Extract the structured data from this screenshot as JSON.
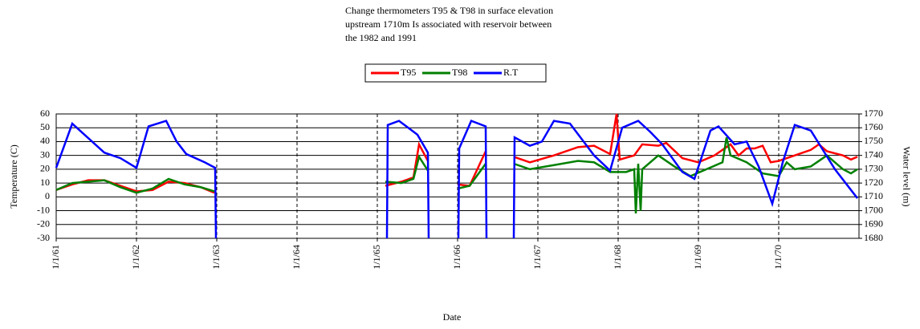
{
  "chart_data": {
    "type": "line",
    "title": [
      "Change thermometers T95 & T98 in surface elevation",
      "upstream 1710m Is associated with reservoir between",
      "the 1982 and 1991"
    ],
    "x_label": "Date",
    "y_label": "Temperature (C)",
    "y2_label": "Water level (m)",
    "xlim": [
      61,
      71
    ],
    "xticks": [
      {
        "value": 61,
        "label": "1/1/61"
      },
      {
        "value": 62,
        "label": "1/1/62"
      },
      {
        "value": 63,
        "label": "1/1/63"
      },
      {
        "value": 64,
        "label": "1/1/64"
      },
      {
        "value": 65,
        "label": "1/1/65"
      },
      {
        "value": 66,
        "label": "1/1/66"
      },
      {
        "value": 67,
        "label": "1/1/67"
      },
      {
        "value": 68,
        "label": "1/1/68"
      },
      {
        "value": 69,
        "label": "1/1/69"
      },
      {
        "value": 70,
        "label": "1/1/70"
      }
    ],
    "ylim": [
      -30,
      60
    ],
    "yticks": [
      -30,
      -20,
      -10,
      0,
      10,
      20,
      30,
      40,
      50,
      60
    ],
    "y2lim": [
      1680,
      1770
    ],
    "y2ticks": [
      1680,
      1690,
      1700,
      1710,
      1720,
      1730,
      1740,
      1750,
      1760,
      1770
    ],
    "grid": true,
    "legend": "top",
    "series": [
      {
        "name": "T95",
        "color": "#ff0000",
        "x": [
          61.0,
          61.2,
          61.4,
          61.6,
          61.8,
          62.0,
          62.2,
          62.4,
          62.6,
          62.8,
          62.97,
          64.0,
          65.1,
          65.3,
          65.45,
          65.52,
          65.63,
          65.8,
          66.0,
          66.15,
          66.35,
          66.5,
          66.7,
          66.9,
          67.2,
          67.5,
          67.7,
          67.9,
          67.98,
          68.02,
          68.2,
          68.3,
          68.5,
          68.6,
          68.8,
          69.0,
          69.2,
          69.35,
          69.4,
          69.5,
          69.6,
          69.7,
          69.8,
          69.9,
          70.0,
          70.2,
          70.4,
          70.5,
          70.6,
          70.8,
          70.9,
          70.98
        ],
        "values": [
          5,
          9,
          12,
          12,
          8,
          4,
          5,
          11,
          10,
          7,
          3,
          null,
          8,
          11,
          14,
          38,
          26,
          null,
          9,
          8,
          33,
          null,
          29,
          25,
          30,
          36,
          37,
          31,
          60,
          27,
          30,
          38,
          37,
          39,
          28,
          25,
          30,
          36,
          38,
          30,
          35,
          35,
          37,
          25,
          26,
          30,
          34,
          38,
          33,
          30,
          27,
          29
        ]
      },
      {
        "name": "T98",
        "color": "#008000",
        "x": [
          61.0,
          61.2,
          61.4,
          61.6,
          61.8,
          62.0,
          62.2,
          62.4,
          62.6,
          62.8,
          62.97,
          64.0,
          65.1,
          65.3,
          65.45,
          65.52,
          65.63,
          65.8,
          66.0,
          66.15,
          66.35,
          66.5,
          66.7,
          66.9,
          67.2,
          67.5,
          67.7,
          67.9,
          68.1,
          68.2,
          68.22,
          68.25,
          68.28,
          68.3,
          68.5,
          68.7,
          68.9,
          69.1,
          69.3,
          69.35,
          69.4,
          69.6,
          69.8,
          70.0,
          70.1,
          70.2,
          70.4,
          70.6,
          70.8,
          70.9,
          70.98
        ],
        "values": [
          5,
          10,
          11,
          12,
          7,
          3,
          6,
          13,
          9,
          7,
          4,
          null,
          11,
          10,
          13,
          29,
          19,
          null,
          6,
          8,
          24,
          null,
          24,
          20,
          23,
          26,
          25,
          18,
          18,
          20,
          -12,
          24,
          -10,
          20,
          30,
          22,
          15,
          20,
          25,
          43,
          30,
          25,
          17,
          15,
          25,
          20,
          22,
          30,
          20,
          17,
          20
        ]
      },
      {
        "name": "R.T",
        "color": "#0000ff",
        "axis": "y2",
        "x": [
          61.0,
          61.2,
          61.6,
          61.8,
          62.0,
          62.15,
          62.37,
          62.5,
          62.62,
          62.85,
          62.98,
          62.99,
          64.0,
          65.12,
          65.13,
          65.27,
          65.5,
          65.63,
          65.64,
          65.8,
          66.01,
          66.02,
          66.17,
          66.35,
          66.36,
          66.5,
          66.7,
          66.71,
          66.9,
          67.05,
          67.2,
          67.4,
          67.7,
          67.9,
          68.05,
          68.25,
          68.4,
          68.55,
          68.8,
          68.95,
          69.15,
          69.25,
          69.45,
          69.6,
          69.75,
          69.92,
          70.05,
          70.2,
          70.4,
          70.7,
          70.98
        ],
        "values": [
          1731,
          1763,
          1742,
          1738,
          1731,
          1761,
          1765,
          1750,
          1741,
          1735,
          1731,
          1680,
          null,
          1680,
          1762,
          1765,
          1755,
          1742,
          1680,
          null,
          1680,
          1745,
          1765,
          1761,
          1680,
          null,
          1680,
          1753,
          1747,
          1750,
          1765,
          1763,
          1740,
          1729,
          1760,
          1765,
          1757,
          1748,
          1728,
          1723,
          1758,
          1761,
          1748,
          1750,
          1732,
          1705,
          1735,
          1762,
          1758,
          1730,
          1709
        ]
      }
    ]
  }
}
